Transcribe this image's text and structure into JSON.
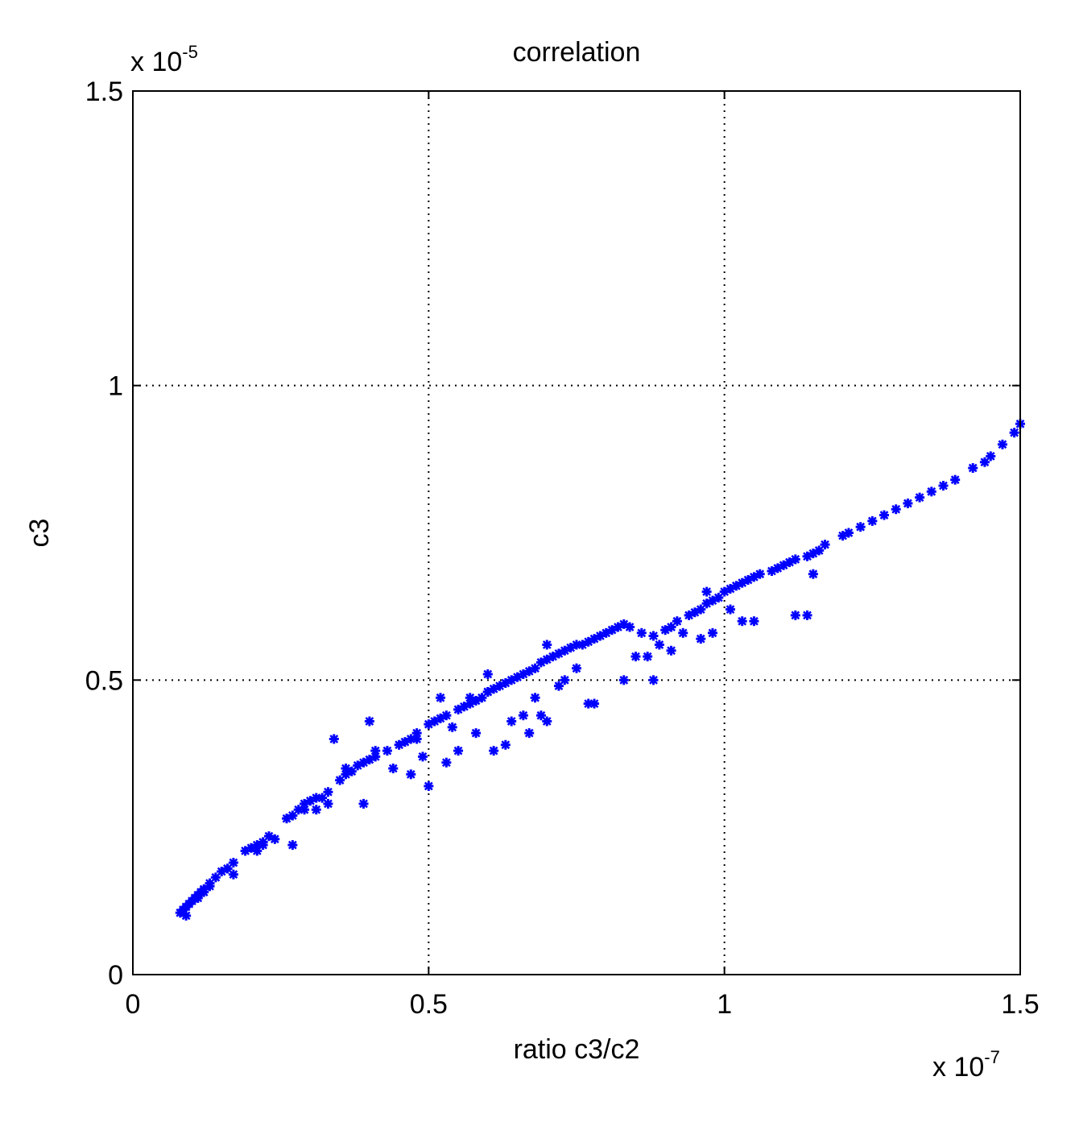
{
  "chart_data": {
    "type": "scatter",
    "title": "correlation",
    "xlabel": "ratio c3/c2",
    "ylabel": "c3",
    "x_multiplier": {
      "base": "x 10",
      "exponent": "-7"
    },
    "y_multiplier": {
      "base": "x 10",
      "exponent": "-5"
    },
    "xlim": [
      0,
      1.5
    ],
    "ylim": [
      0,
      1.5
    ],
    "xticks": [
      "0",
      "0.5",
      "1",
      "1.5"
    ],
    "yticks": [
      "0",
      "0.5",
      "1",
      "1.5"
    ],
    "grid": true,
    "marker": "*",
    "marker_color": "#0000ff",
    "series": [
      {
        "x": [
          0.08,
          0.085,
          0.09,
          0.095,
          0.1,
          0.105,
          0.11,
          0.115,
          0.12,
          0.13,
          0.14,
          0.15,
          0.16,
          0.17,
          0.19,
          0.2,
          0.21,
          0.22,
          0.23,
          0.26,
          0.27,
          0.28,
          0.29,
          0.3,
          0.31,
          0.32,
          0.33,
          0.35,
          0.36,
          0.37,
          0.38,
          0.39,
          0.4,
          0.41,
          0.43,
          0.45,
          0.46,
          0.47,
          0.48,
          0.5,
          0.51,
          0.52,
          0.53,
          0.55,
          0.56,
          0.57,
          0.58,
          0.59,
          0.6,
          0.61,
          0.62,
          0.63,
          0.64,
          0.65,
          0.66,
          0.67,
          0.68,
          0.69,
          0.7,
          0.71,
          0.72,
          0.73,
          0.74,
          0.75,
          0.76,
          0.77,
          0.78,
          0.79,
          0.8,
          0.81,
          0.82,
          0.83,
          0.84,
          0.86,
          0.88,
          0.9,
          0.91,
          0.92,
          0.94,
          0.95,
          0.96,
          0.97,
          0.98,
          0.99,
          1.0,
          1.01,
          1.02,
          1.03,
          1.04,
          1.05,
          1.06,
          1.08,
          1.09,
          1.1,
          1.11,
          1.12,
          1.14,
          1.15,
          1.16,
          1.17,
          1.2,
          1.21,
          1.23,
          1.25,
          1.27,
          1.29,
          1.31,
          1.33,
          1.35,
          1.37,
          1.39,
          1.42,
          1.44,
          1.45,
          1.47,
          1.49,
          1.5,
          0.17,
          0.27,
          0.34,
          0.39,
          0.4,
          0.47,
          0.5,
          0.52,
          0.55,
          0.58,
          0.6,
          0.61,
          0.63,
          0.67,
          0.69,
          0.7,
          0.72,
          0.77,
          0.78,
          0.83,
          0.85,
          0.88,
          0.91,
          0.96,
          0.98,
          1.03,
          1.05,
          1.12,
          1.14,
          0.7,
          0.6,
          0.54,
          0.53,
          0.49,
          0.44,
          0.36,
          0.33,
          0.31,
          0.24,
          0.22,
          0.13,
          0.11,
          1.15,
          1.01,
          0.97,
          0.93,
          0.89,
          0.87,
          0.75,
          0.73,
          0.68,
          0.66,
          0.64,
          0.57,
          0.48,
          0.41,
          0.29,
          0.21,
          0.16,
          0.12,
          0.09
        ],
        "y": [
          0.105,
          0.11,
          0.115,
          0.12,
          0.125,
          0.13,
          0.135,
          0.14,
          0.145,
          0.155,
          0.165,
          0.175,
          0.18,
          0.19,
          0.21,
          0.215,
          0.22,
          0.225,
          0.235,
          0.265,
          0.27,
          0.28,
          0.29,
          0.295,
          0.3,
          0.3,
          0.31,
          0.33,
          0.34,
          0.345,
          0.355,
          0.36,
          0.365,
          0.37,
          0.38,
          0.39,
          0.395,
          0.4,
          0.41,
          0.425,
          0.43,
          0.435,
          0.44,
          0.45,
          0.455,
          0.46,
          0.465,
          0.47,
          0.48,
          0.485,
          0.49,
          0.495,
          0.5,
          0.505,
          0.51,
          0.515,
          0.52,
          0.53,
          0.535,
          0.54,
          0.545,
          0.55,
          0.555,
          0.56,
          0.56,
          0.565,
          0.57,
          0.575,
          0.58,
          0.585,
          0.59,
          0.595,
          0.59,
          0.58,
          0.575,
          0.585,
          0.59,
          0.6,
          0.61,
          0.615,
          0.62,
          0.63,
          0.635,
          0.64,
          0.65,
          0.655,
          0.66,
          0.665,
          0.67,
          0.675,
          0.68,
          0.685,
          0.69,
          0.695,
          0.7,
          0.705,
          0.71,
          0.715,
          0.72,
          0.73,
          0.745,
          0.75,
          0.76,
          0.77,
          0.78,
          0.79,
          0.8,
          0.81,
          0.82,
          0.83,
          0.84,
          0.86,
          0.87,
          0.88,
          0.9,
          0.92,
          0.935,
          0.17,
          0.22,
          0.4,
          0.29,
          0.43,
          0.34,
          0.32,
          0.47,
          0.38,
          0.41,
          0.51,
          0.38,
          0.39,
          0.41,
          0.44,
          0.43,
          0.49,
          0.46,
          0.46,
          0.5,
          0.54,
          0.5,
          0.55,
          0.57,
          0.58,
          0.6,
          0.6,
          0.61,
          0.61,
          0.56,
          0.48,
          0.42,
          0.36,
          0.37,
          0.35,
          0.35,
          0.29,
          0.28,
          0.23,
          0.22,
          0.15,
          0.13,
          0.68,
          0.62,
          0.65,
          0.58,
          0.56,
          0.54,
          0.52,
          0.5,
          0.47,
          0.44,
          0.43,
          0.47,
          0.4,
          0.38,
          0.28,
          0.21,
          0.18,
          0.14,
          0.1
        ]
      }
    ]
  }
}
